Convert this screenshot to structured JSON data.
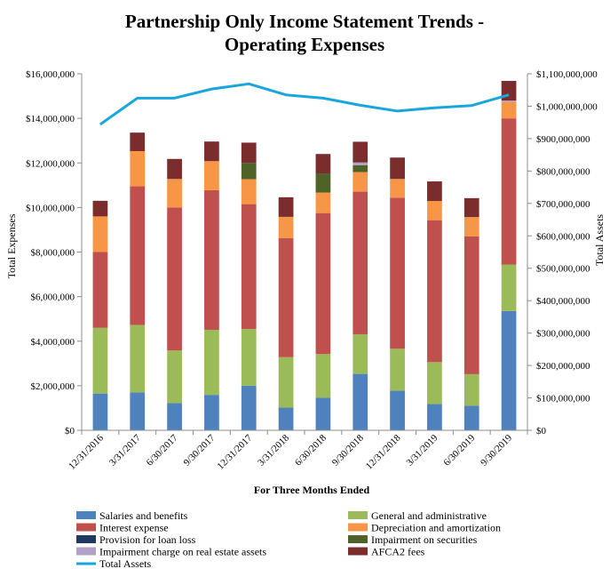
{
  "chart_data": {
    "type": "bar",
    "stacked": true,
    "title_lines": [
      "Partnership Only Income Statement Trends -",
      "Operating Expenses"
    ],
    "xlabel": "For Three Months Ended",
    "ylabel": "Total Expenses",
    "y2label": "Total Assets",
    "ylim": [
      0,
      16000000
    ],
    "y2lim": [
      0,
      1100000000
    ],
    "y_ticks": [
      0,
      2000000,
      4000000,
      6000000,
      8000000,
      10000000,
      12000000,
      14000000,
      16000000
    ],
    "y_tick_labels": [
      "$0",
      "$2,000,000",
      "$4,000,000",
      "$6,000,000",
      "$8,000,000",
      "$10,000,000",
      "$12,000,000",
      "$14,000,000",
      "$16,000,000"
    ],
    "y2_ticks": [
      0,
      100000000,
      200000000,
      300000000,
      400000000,
      500000000,
      600000000,
      700000000,
      800000000,
      900000000,
      1000000000,
      1100000000
    ],
    "y2_tick_labels": [
      "$0",
      "$100,000,000",
      "$200,000,000",
      "$300,000,000",
      "$400,000,000",
      "$500,000,000",
      "$600,000,000",
      "$700,000,000",
      "$800,000,000",
      "$900,000,000",
      "$1,000,000,000",
      "$1,100,000,000"
    ],
    "categories": [
      "12/31/2016",
      "3/31/2017",
      "6/30/2017",
      "9/30/2017",
      "12/31/2017",
      "3/31/2018",
      "6/30/2018",
      "9/30/2018",
      "12/31/2018",
      "3/31/2019",
      "6/30/2019",
      "9/30/2019"
    ],
    "grid": false,
    "legend_position": "bottom",
    "series": [
      {
        "name": "Salaries and benefits",
        "color": "#4f81bd",
        "values": [
          1650000,
          1700000,
          1220000,
          1590000,
          2000000,
          1020000,
          1460000,
          2530000,
          1780000,
          1180000,
          1100000,
          5350000
        ]
      },
      {
        "name": "General and administrative",
        "color": "#9bbb59",
        "values": [
          2950000,
          3030000,
          2360000,
          2920000,
          2550000,
          2260000,
          1960000,
          1780000,
          1880000,
          1880000,
          1420000,
          2090000
        ]
      },
      {
        "name": "Interest expense",
        "color": "#c0504d",
        "values": [
          3400000,
          6220000,
          6420000,
          6270000,
          5600000,
          5340000,
          6330000,
          6400000,
          6780000,
          6370000,
          6180000,
          6560000
        ]
      },
      {
        "name": "Depreciation and amortization",
        "color": "#f79646",
        "values": [
          1600000,
          1580000,
          1280000,
          1300000,
          1120000,
          960000,
          920000,
          880000,
          840000,
          860000,
          870000,
          740000
        ]
      },
      {
        "name": "Provision for loan loss",
        "color": "#1f3864",
        "values": [
          0,
          0,
          0,
          0,
          0,
          0,
          0,
          0,
          0,
          0,
          0,
          0
        ]
      },
      {
        "name": "Impairment on securities",
        "color": "#4f6228",
        "values": [
          0,
          0,
          0,
          0,
          730000,
          0,
          860000,
          310000,
          0,
          0,
          0,
          0
        ]
      },
      {
        "name": "Impairment charge on real estate assets",
        "color": "#b3a2c7",
        "values": [
          0,
          0,
          0,
          0,
          0,
          0,
          0,
          120000,
          0,
          0,
          0,
          60000
        ]
      },
      {
        "name": "AFCA2 fees",
        "color": "#7b2c2c",
        "values": [
          700000,
          830000,
          900000,
          880000,
          910000,
          880000,
          870000,
          930000,
          960000,
          880000,
          850000,
          880000
        ]
      }
    ],
    "line_series": {
      "name": "Total Assets",
      "color": "#1aa6dc",
      "axis": "secondary",
      "values": [
        944000000,
        1025000000,
        1025000000,
        1053000000,
        1069000000,
        1035000000,
        1025000000,
        1003000000,
        985000000,
        995000000,
        1002000000,
        1035000000
      ]
    }
  }
}
